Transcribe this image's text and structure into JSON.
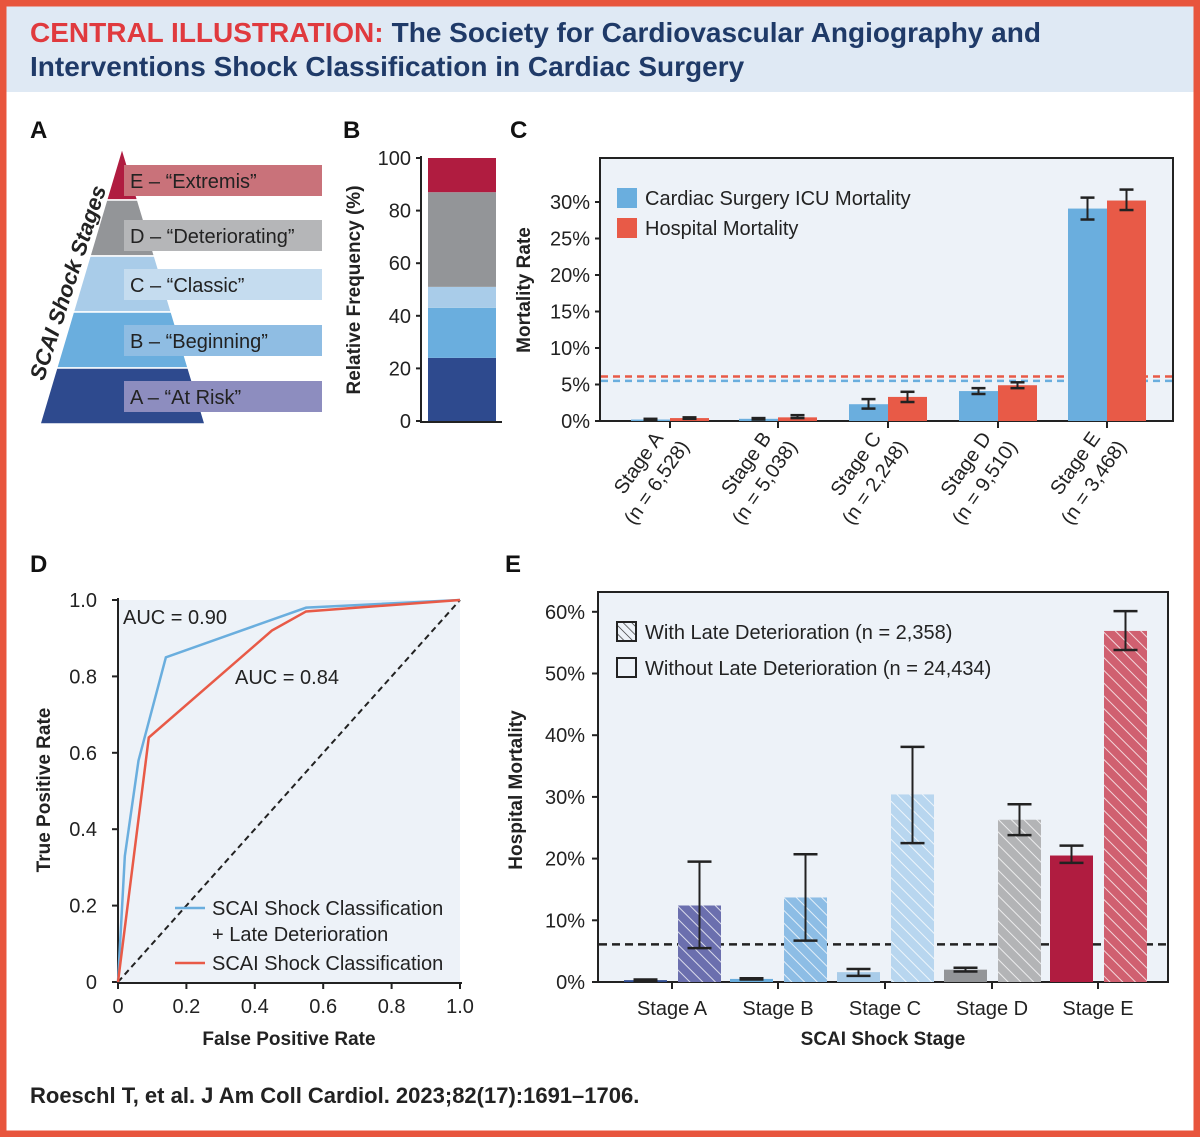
{
  "header": {
    "prefix": "CENTRAL ILLUSTRATION:",
    "line1": "The Society for Cardiovascular Angiography and",
    "line2": "Interventions Shock Classification in Cardiac Surgery"
  },
  "colors": {
    "frame": "#e8553d",
    "header_bg": "#dfe9f4",
    "prefix": "#e03a3e",
    "title": "#1f3a68",
    "stageA": "#2e4a8e",
    "stageB": "#6aaede",
    "stageC": "#a9cce9",
    "stageD": "#939598",
    "stageE": "#b01c40",
    "icu": "#6aaede",
    "hospital": "#e85a47",
    "plot_bg": "#edf2f8"
  },
  "panels": {
    "a": "A",
    "b": "B",
    "c": "C",
    "d": "D",
    "e": "E"
  },
  "panel_a": {
    "axis_title": "SCAI Shock Stages",
    "stages": [
      "E – “Extremis”",
      "D – “Deteriorating”",
      "C – “Classic”",
      "B – “Beginning”",
      "A – “At Risk”"
    ]
  },
  "chart_data": [
    {
      "id": "B",
      "type": "bar",
      "stacked": true,
      "ylabel": "Relative Frequency (%)",
      "ylim": [
        0,
        100
      ],
      "yticks": [
        "0",
        "20",
        "40",
        "60",
        "80",
        "100"
      ],
      "segments": [
        {
          "stage": "A",
          "from": 0,
          "to": 24
        },
        {
          "stage": "B",
          "from": 24,
          "to": 43
        },
        {
          "stage": "C",
          "from": 43,
          "to": 51
        },
        {
          "stage": "D",
          "from": 51,
          "to": 87
        },
        {
          "stage": "E",
          "from": 87,
          "to": 100
        }
      ]
    },
    {
      "id": "C",
      "type": "bar",
      "ylabel": "Mortality Rate",
      "ylim": [
        0,
        36
      ],
      "yticks": [
        "0%",
        "5%",
        "10%",
        "15%",
        "20%",
        "25%",
        "30%"
      ],
      "categories": [
        [
          "Stage A",
          "(n = 6,528)"
        ],
        [
          "Stage B",
          "(n = 5,038)"
        ],
        [
          "Stage C",
          "(n = 2,248)"
        ],
        [
          "Stage D",
          "(n = 9,510)"
        ],
        [
          "Stage E",
          "(n = 3,468)"
        ]
      ],
      "series": [
        {
          "name": "Cardiac Surgery ICU Mortality",
          "values": [
            0.2,
            0.3,
            2.3,
            4.1,
            29.1
          ],
          "err_low": [
            0.1,
            0.2,
            1.7,
            3.7,
            27.6
          ],
          "err_high": [
            0.3,
            0.4,
            3.0,
            4.5,
            30.6
          ],
          "overall": 5.5
        },
        {
          "name": "Hospital Mortality",
          "values": [
            0.4,
            0.5,
            3.3,
            4.9,
            30.2
          ],
          "err_low": [
            0.3,
            0.4,
            2.6,
            4.5,
            28.9
          ],
          "err_high": [
            0.5,
            0.8,
            4.0,
            5.3,
            31.7
          ],
          "overall": 6.1
        }
      ]
    },
    {
      "id": "D",
      "type": "line",
      "xlabel": "False Positive Rate",
      "ylabel": "True Positive Rate",
      "xlim": [
        0,
        1
      ],
      "ylim": [
        0,
        1
      ],
      "xticks": [
        "0",
        "0.2",
        "0.4",
        "0.6",
        "0.8",
        "1.0"
      ],
      "yticks": [
        "0",
        "0.2",
        "0.4",
        "0.6",
        "0.8",
        "1.0"
      ],
      "series": [
        {
          "name": "SCAI Shock Classification",
          "name2": "+ Late Deterioration",
          "auc_label": "AUC = 0.90",
          "x": [
            0,
            0.02,
            0.06,
            0.14,
            0.55,
            1
          ],
          "y": [
            0,
            0.33,
            0.58,
            0.85,
            0.98,
            1
          ]
        },
        {
          "name": "SCAI Shock Classification",
          "auc_label": "AUC = 0.84",
          "x": [
            0,
            0.09,
            0.45,
            0.55,
            1
          ],
          "y": [
            0,
            0.64,
            0.92,
            0.97,
            1
          ]
        }
      ]
    },
    {
      "id": "E",
      "type": "bar",
      "xlabel": "SCAI Shock Stage",
      "ylabel": "Hospital Mortality",
      "ylim": [
        0,
        63
      ],
      "yticks": [
        "0%",
        "10%",
        "20%",
        "30%",
        "40%",
        "50%",
        "60%"
      ],
      "categories": [
        "Stage A",
        "Stage B",
        "Stage C",
        "Stage D",
        "Stage E"
      ],
      "overall": 6.1,
      "series": [
        {
          "name": "Without Late Deterioration (n = 24,434)",
          "values": [
            0.3,
            0.5,
            1.6,
            2.0,
            20.5
          ],
          "err_low": [
            0.2,
            0.4,
            1.0,
            1.7,
            19.3
          ],
          "err_high": [
            0.4,
            0.6,
            2.1,
            2.3,
            22.1
          ]
        },
        {
          "name": "With Late Deterioration (n = 2,358)",
          "values": [
            12.4,
            13.7,
            30.4,
            26.3,
            56.9
          ],
          "err_low": [
            5.5,
            6.7,
            22.5,
            23.8,
            53.8
          ],
          "err_high": [
            19.5,
            20.7,
            38.1,
            28.8,
            60.1
          ]
        }
      ]
    }
  ],
  "citation": "Roeschl T, et al. J Am Coll Cardiol. 2023;82(17):1691–1706."
}
